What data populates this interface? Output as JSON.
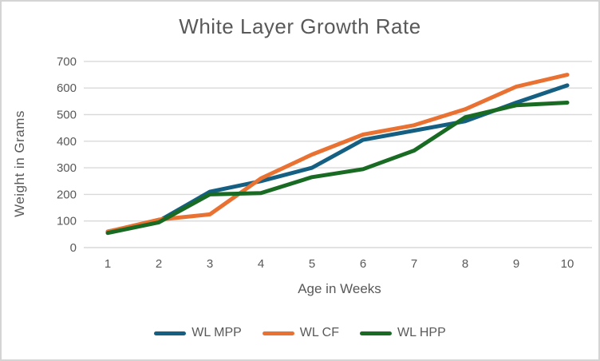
{
  "chart_data": {
    "type": "line",
    "title": "White Layer Growth Rate",
    "xlabel": "Age in Weeks",
    "ylabel": "Weight in Grams",
    "x": [
      1,
      2,
      3,
      4,
      5,
      6,
      7,
      8,
      9,
      10
    ],
    "series": [
      {
        "name": "WL MPP",
        "color": "#156082",
        "values": [
          60,
          100,
          210,
          250,
          300,
          405,
          440,
          475,
          545,
          610
        ]
      },
      {
        "name": "WL CF",
        "color": "#E97132",
        "values": [
          60,
          105,
          125,
          260,
          350,
          425,
          460,
          520,
          605,
          650
        ]
      },
      {
        "name": "WL HPP",
        "color": "#196B24",
        "values": [
          55,
          95,
          200,
          205,
          265,
          295,
          365,
          490,
          535,
          545
        ]
      }
    ],
    "ylim": [
      0,
      700
    ],
    "ytick_step": 100,
    "grid": "horizontal",
    "gridline_color": "#D9D9D9",
    "text_color": "#595959",
    "legend_position": "bottom",
    "line_width": 5
  }
}
